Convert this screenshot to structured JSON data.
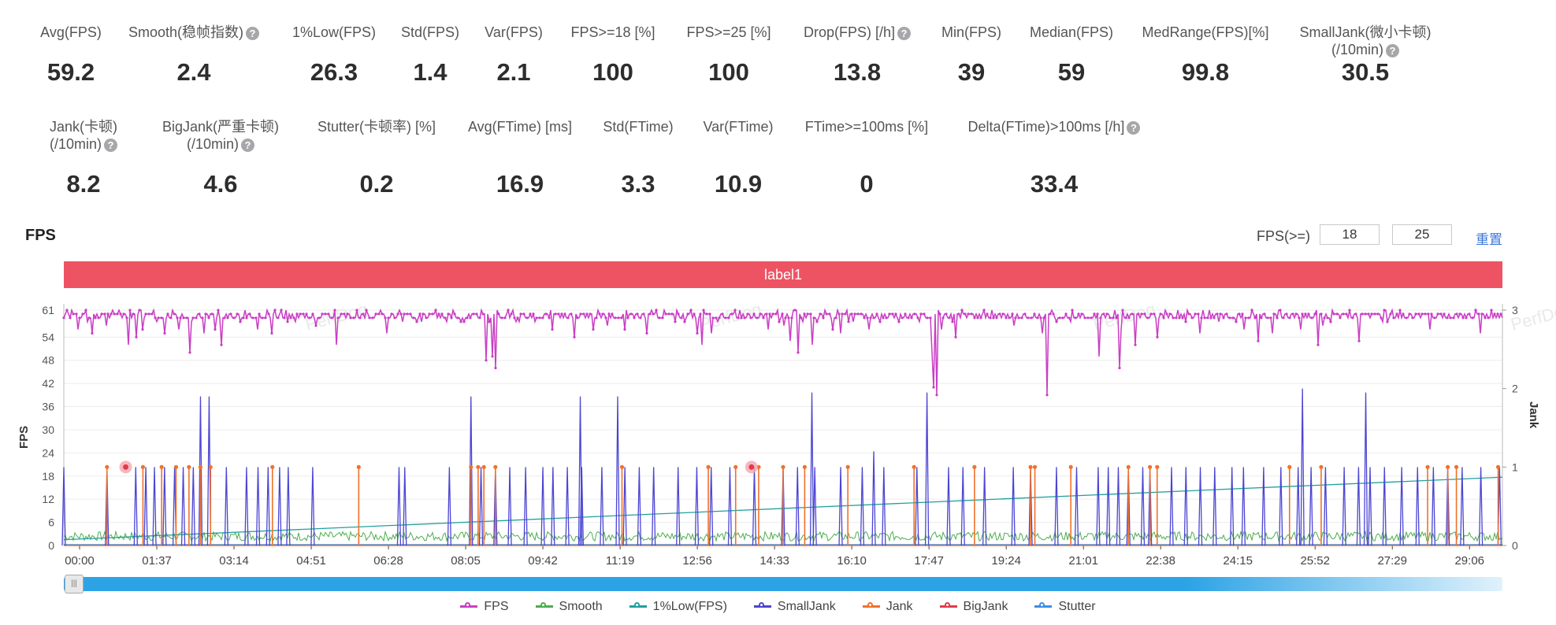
{
  "metrics_row1": [
    {
      "label": "Avg(FPS)",
      "value": "59.2",
      "help": false
    },
    {
      "label": "Smooth(稳帧指数)",
      "value": "2.4",
      "help": true
    },
    {
      "label": "1%Low(FPS)",
      "value": "26.3",
      "help": false
    },
    {
      "label": "Std(FPS)",
      "value": "1.4",
      "help": false
    },
    {
      "label": "Var(FPS)",
      "value": "2.1",
      "help": false
    },
    {
      "label": "FPS>=18 [%]",
      "value": "100",
      "help": false
    },
    {
      "label": "FPS>=25 [%]",
      "value": "100",
      "help": false
    },
    {
      "label": "Drop(FPS) [/h]",
      "value": "13.8",
      "help": true
    },
    {
      "label": "Min(FPS)",
      "value": "39",
      "help": false
    },
    {
      "label": "Median(FPS)",
      "value": "59",
      "help": false
    },
    {
      "label": "MedRange(FPS)[%]",
      "value": "99.8",
      "help": false
    },
    {
      "label": "SmallJank(微小卡顿)",
      "label2": "(/10min)",
      "value": "30.5",
      "help": true
    }
  ],
  "metrics_row2": [
    {
      "label": "Jank(卡顿)",
      "label2": "(/10min)",
      "value": "8.2",
      "help": true
    },
    {
      "label": "BigJank(严重卡顿)",
      "label2": "(/10min)",
      "value": "4.6",
      "help": true
    },
    {
      "label": "Stutter(卡顿率) [%]",
      "value": "0.2",
      "help": false
    },
    {
      "label": "Avg(FTime) [ms]",
      "value": "16.9",
      "help": false
    },
    {
      "label": "Std(FTime)",
      "value": "3.3",
      "help": false
    },
    {
      "label": "Var(FTime)",
      "value": "10.9",
      "help": false
    },
    {
      "label": "FTime>=100ms [%]",
      "value": "0",
      "help": false
    },
    {
      "label": "Delta(FTime)>100ms [/h]",
      "value": "33.4",
      "help": true
    }
  ],
  "help_glyph": "?",
  "chart_header": {
    "title": "FPS",
    "threshold_label": "FPS(>=)",
    "threshold_low": "18",
    "threshold_high": "25",
    "reset_label": "重置"
  },
  "label_bar": "label1",
  "watermark": "PerfDog",
  "scroll_thumb_glyph": "|||",
  "chart_data": {
    "type": "line",
    "title": "",
    "ylabel": "FPS",
    "y2label": "Jank",
    "ylim": [
      0,
      61
    ],
    "y2lim": [
      0,
      3
    ],
    "yticks": [
      0,
      6,
      12,
      18,
      24,
      30,
      36,
      42,
      48,
      54,
      61
    ],
    "y2ticks": [
      0,
      1,
      2,
      3
    ],
    "x_total_seconds": 1810,
    "x_tick_labels": [
      "00:00",
      "01:37",
      "03:14",
      "04:51",
      "06:28",
      "08:05",
      "09:42",
      "11:19",
      "12:56",
      "14:33",
      "16:10",
      "17:47",
      "19:24",
      "21:01",
      "22:38",
      "24:15",
      "25:52",
      "27:29",
      "29:06"
    ],
    "legend_position": "bottom",
    "colors": {
      "FPS": "#c93ec4",
      "Smooth": "#4cae4c",
      "1%Low(FPS)": "#1fa19e",
      "SmallJank": "#4b45d3",
      "Jank": "#f0712a",
      "BigJank": "#e23a4a",
      "Stutter": "#3b8fe6"
    },
    "series": [
      {
        "name": "FPS",
        "baseline": 59,
        "dips": [
          [
            0.01,
            56
          ],
          [
            0.02,
            55
          ],
          [
            0.03,
            57
          ],
          [
            0.045,
            52
          ],
          [
            0.05,
            54
          ],
          [
            0.055,
            56
          ],
          [
            0.065,
            58
          ],
          [
            0.07,
            55
          ],
          [
            0.08,
            56
          ],
          [
            0.088,
            50
          ],
          [
            0.098,
            55
          ],
          [
            0.105,
            56
          ],
          [
            0.11,
            52
          ],
          [
            0.135,
            56
          ],
          [
            0.145,
            55
          ],
          [
            0.155,
            58
          ],
          [
            0.175,
            57
          ],
          [
            0.19,
            52
          ],
          [
            0.225,
            55
          ],
          [
            0.3,
            57
          ],
          [
            0.34,
            56
          ],
          [
            0.355,
            54
          ],
          [
            0.368,
            56
          ],
          [
            0.378,
            57
          ],
          [
            0.39,
            56
          ],
          [
            0.405,
            55
          ],
          [
            0.425,
            58
          ],
          [
            0.44,
            55
          ],
          [
            0.444,
            52
          ],
          [
            0.45,
            55
          ],
          [
            0.455,
            58
          ],
          [
            0.49,
            56
          ],
          [
            0.5,
            57
          ],
          [
            0.505,
            53
          ],
          [
            0.51,
            50
          ],
          [
            0.52,
            52
          ],
          [
            0.535,
            56
          ],
          [
            0.54,
            55
          ],
          [
            0.56,
            56
          ],
          [
            0.58,
            58
          ],
          [
            0.604,
            50
          ],
          [
            0.605,
            41
          ],
          [
            0.61,
            56
          ],
          [
            0.62,
            54
          ],
          [
            0.66,
            57
          ],
          [
            0.7,
            58
          ],
          [
            0.72,
            55
          ],
          [
            0.735,
            56
          ],
          [
            0.76,
            54
          ],
          [
            0.82,
            56
          ],
          [
            0.83,
            53
          ],
          [
            0.84,
            55
          ],
          [
            0.86,
            56
          ],
          [
            0.872,
            52
          ],
          [
            0.875,
            57
          ],
          [
            0.9,
            53
          ],
          [
            0.92,
            58
          ],
          [
            0.95,
            56
          ],
          [
            0.985,
            55
          ]
        ],
        "deep_dips": [
          [
            0.298,
            49
          ],
          [
            0.3,
            46
          ],
          [
            0.293,
            48
          ],
          [
            0.607,
            39
          ],
          [
            0.683,
            44
          ],
          [
            0.684,
            39
          ],
          [
            0.734,
            46
          ],
          [
            0.72,
            49
          ],
          [
            0.68,
            55
          ],
          [
            0.745,
            52
          ],
          [
            0.79,
            55
          ]
        ]
      },
      {
        "name": "Smooth",
        "baseline": 2.4
      },
      {
        "name": "1%Low(FPS)",
        "start": 1.5,
        "end": 17.7
      },
      {
        "name": "SmallJank",
        "positions": [
          0.0,
          0.03,
          0.05,
          0.057,
          0.063,
          0.07,
          0.077,
          0.083,
          0.09,
          0.095,
          0.113,
          0.127,
          0.135,
          0.142,
          0.15,
          0.156,
          0.173,
          0.233,
          0.237,
          0.268,
          0.29,
          0.3,
          0.31,
          0.321,
          0.333,
          0.34,
          0.35,
          0.36,
          0.374,
          0.385,
          0.39,
          0.4,
          0.41,
          0.427,
          0.44,
          0.45,
          0.463,
          0.48,
          0.5,
          0.51,
          0.522,
          0.54,
          0.555,
          0.57,
          0.593,
          0.6,
          0.615,
          0.625,
          0.64,
          0.66,
          0.672,
          0.69,
          0.704,
          0.719,
          0.726,
          0.733,
          0.74,
          0.75,
          0.755,
          0.77,
          0.78,
          0.79,
          0.8,
          0.812,
          0.82,
          0.834,
          0.846,
          0.858,
          0.867,
          0.877,
          0.89,
          0.9,
          0.908,
          0.918,
          0.93,
          0.941,
          0.952,
          0.962,
          0.972,
          0.985,
          0.998
        ],
        "tall": [
          [
            0.095,
            1.9
          ],
          [
            0.101,
            1.9
          ],
          [
            0.283,
            1.9
          ],
          [
            0.359,
            1.9
          ],
          [
            0.385,
            1.9
          ],
          [
            0.52,
            1.95
          ],
          [
            0.563,
            1.2
          ],
          [
            0.6,
            1.95
          ],
          [
            0.861,
            2.0
          ],
          [
            0.905,
            1.95
          ]
        ]
      },
      {
        "name": "Jank",
        "positions": [
          0.03,
          0.055,
          0.068,
          0.078,
          0.087,
          0.095,
          0.102,
          0.145,
          0.205,
          0.283,
          0.288,
          0.292,
          0.3,
          0.388,
          0.448,
          0.467,
          0.483,
          0.5,
          0.515,
          0.545,
          0.591,
          0.633,
          0.672,
          0.675,
          0.7,
          0.74,
          0.755,
          0.76,
          0.852,
          0.874,
          0.948,
          0.962,
          0.968,
          0.997
        ]
      },
      {
        "name": "BigJank",
        "positions": [
          0.043,
          0.478
        ]
      },
      {
        "name": "Stutter",
        "values": []
      }
    ]
  }
}
